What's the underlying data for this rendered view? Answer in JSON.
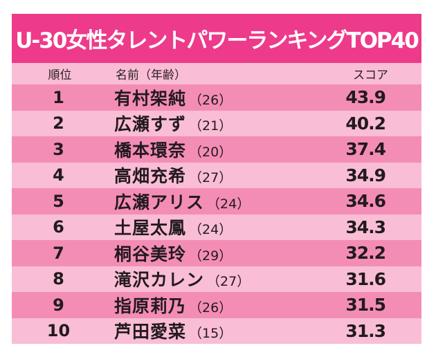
{
  "title": "U-30女性タレントパワーランキングTOP40",
  "header": {
    "rank": "順位",
    "name": "名前（年齢）",
    "score": "スコア"
  },
  "rows": [
    {
      "rank": "1",
      "name": "有村架純",
      "age": "（26）",
      "score": "43.9"
    },
    {
      "rank": "2",
      "name": "広瀬すず",
      "age": "（21）",
      "score": "40.2"
    },
    {
      "rank": "3",
      "name": "橋本環奈",
      "age": "（20）",
      "score": "37.4"
    },
    {
      "rank": "4",
      "name": "高畑充希",
      "age": "（27）",
      "score": "34.9"
    },
    {
      "rank": "5",
      "name": "広瀬アリス",
      "age": "（24）",
      "score": "34.6"
    },
    {
      "rank": "6",
      "name": "土屋太鳳",
      "age": "（24）",
      "score": "34.3"
    },
    {
      "rank": "7",
      "name": "桐谷美玲",
      "age": "（29）",
      "score": "32.2"
    },
    {
      "rank": "8",
      "name": "滝沢カレン",
      "age": "（27）",
      "score": "31.6"
    },
    {
      "rank": "9",
      "name": "指原莉乃",
      "age": "（26）",
      "score": "31.5"
    },
    {
      "rank": "10",
      "name": "芦田愛菜",
      "age": "（15）",
      "score": "31.3"
    }
  ],
  "colors": {
    "title_bg": "#ee3a8a",
    "row_dark": "#f48db6",
    "row_light": "#f9bdd5",
    "text": "#221a1e"
  },
  "chart_data": {
    "type": "table",
    "title": "U-30女性タレントパワーランキングTOP40",
    "columns": [
      "順位",
      "名前（年齢）",
      "スコア"
    ],
    "rows": [
      [
        "1",
        "有村架純（26）",
        43.9
      ],
      [
        "2",
        "広瀬すず（21）",
        40.2
      ],
      [
        "3",
        "橋本環奈（20）",
        37.4
      ],
      [
        "4",
        "高畑充希（27）",
        34.9
      ],
      [
        "5",
        "広瀬アリス（24）",
        34.6
      ],
      [
        "6",
        "土屋太鳳（24）",
        34.3
      ],
      [
        "7",
        "桐谷美玲（29）",
        32.2
      ],
      [
        "8",
        "滝沢カレン（27）",
        31.6
      ],
      [
        "9",
        "指原莉乃（26）",
        31.5
      ],
      [
        "10",
        "芦田愛菜（15）",
        31.3
      ]
    ]
  }
}
